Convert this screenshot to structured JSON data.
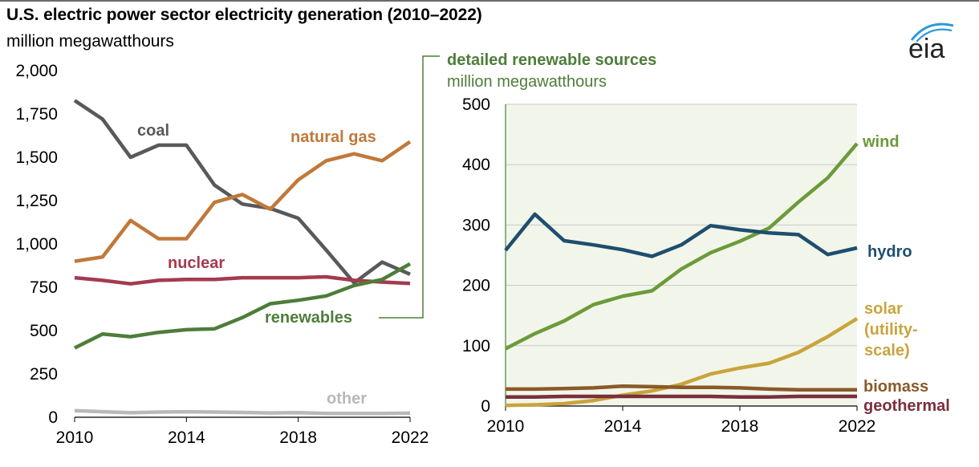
{
  "header": {
    "title": "U.S. electric power sector electricity generation (2010–2022)",
    "units": "million megawatthours",
    "logo_text": "eia"
  },
  "chart_data": [
    {
      "type": "line",
      "ylim": [
        0,
        2000
      ],
      "xlim": [
        2010,
        2022
      ],
      "x_ticks": [
        2010,
        2014,
        2018,
        2022
      ],
      "y_ticks": [
        0,
        250,
        500,
        750,
        1000,
        1250,
        1500,
        1750,
        2000
      ],
      "y_tick_labels": [
        "0",
        "250",
        "500",
        "750",
        "1,000",
        "1,250",
        "1,500",
        "1,750",
        "2,000"
      ],
      "grid": false,
      "x": [
        2010,
        2011,
        2012,
        2013,
        2014,
        2015,
        2016,
        2017,
        2018,
        2019,
        2020,
        2021,
        2022
      ],
      "series": [
        {
          "name": "coal",
          "color": "#58595b",
          "values": [
            1828,
            1720,
            1500,
            1570,
            1570,
            1340,
            1230,
            1205,
            1148,
            965,
            775,
            895,
            825
          ]
        },
        {
          "name": "natural gas",
          "color": "#c0793a",
          "values": [
            900,
            925,
            1135,
            1030,
            1030,
            1240,
            1285,
            1200,
            1370,
            1480,
            1520,
            1480,
            1590
          ]
        },
        {
          "name": "nuclear",
          "color": "#a43a4f",
          "values": [
            805,
            790,
            770,
            790,
            795,
            795,
            805,
            805,
            805,
            810,
            790,
            780,
            772
          ]
        },
        {
          "name": "renewables",
          "color": "#4e7d3a",
          "values": [
            400,
            480,
            465,
            490,
            505,
            510,
            575,
            655,
            675,
            700,
            760,
            795,
            885
          ]
        },
        {
          "name": "other",
          "color": "#b9b9b9",
          "values": [
            38,
            32,
            26,
            30,
            32,
            30,
            28,
            25,
            27,
            22,
            22,
            22,
            24
          ]
        }
      ]
    },
    {
      "type": "line",
      "title": "detailed renewable sources",
      "units": "million megawatthours",
      "ylim": [
        0,
        500
      ],
      "xlim": [
        2010,
        2022
      ],
      "x_ticks": [
        2010,
        2014,
        2018,
        2022
      ],
      "y_ticks": [
        0,
        100,
        200,
        300,
        400,
        500
      ],
      "grid": true,
      "x": [
        2010,
        2011,
        2012,
        2013,
        2014,
        2015,
        2016,
        2017,
        2018,
        2019,
        2020,
        2021,
        2022
      ],
      "series": [
        {
          "name": "wind",
          "color": "#6b9b3a",
          "values": [
            95,
            120,
            141,
            168,
            182,
            191,
            227,
            254,
            273,
            295,
            338,
            378,
            435
          ]
        },
        {
          "name": "hydro",
          "color": "#1f4e6e",
          "values": [
            258,
            318,
            274,
            267,
            259,
            248,
            267,
            299,
            292,
            287,
            284,
            251,
            262
          ]
        },
        {
          "name": "solar (utility-scale)",
          "color": "#c9a43c",
          "values": [
            1,
            2,
            4,
            9,
            18,
            25,
            36,
            53,
            63,
            71,
            89,
            115,
            145
          ]
        },
        {
          "name": "biomass",
          "color": "#8a5a2b",
          "values": [
            28,
            28,
            29,
            30,
            33,
            32,
            31,
            31,
            30,
            28,
            27,
            27,
            27
          ]
        },
        {
          "name": "geothermal",
          "color": "#7a2f3b",
          "values": [
            15,
            15,
            16,
            16,
            16,
            16,
            16,
            16,
            15,
            15,
            16,
            16,
            16
          ]
        }
      ]
    }
  ],
  "labels": {
    "coal": "coal",
    "natural_gas": "natural gas",
    "nuclear": "nuclear",
    "renewables": "renewables",
    "other": "other",
    "wind": "wind",
    "hydro": "hydro",
    "solar_1": "solar",
    "solar_2": "(utility-",
    "solar_3": "scale)",
    "biomass": "biomass",
    "geothermal": "geothermal"
  }
}
